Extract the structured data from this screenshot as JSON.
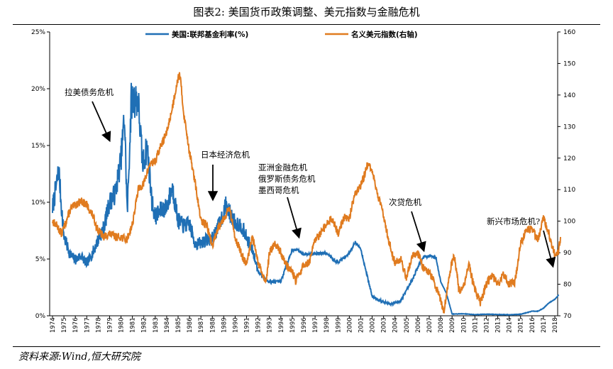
{
  "figure": {
    "title": "图表2:    美国货币政策调整、美元指数与金融危机",
    "source": "资料来源:Wind,恒大研究院"
  },
  "chart_data": {
    "type": "line",
    "x_years": [
      "1974",
      "1975",
      "1976",
      "1977",
      "1978",
      "1979",
      "1980",
      "1981",
      "1982",
      "1983",
      "1984",
      "1985",
      "1986",
      "1987",
      "1988",
      "1989",
      "1990",
      "1991",
      "1992",
      "1993",
      "1994",
      "1995",
      "1996",
      "1997",
      "1998",
      "1999",
      "2000",
      "2001",
      "2002",
      "2003",
      "2004",
      "2005",
      "2006",
      "2007",
      "2008",
      "2009",
      "2010",
      "2011",
      "2012",
      "2013",
      "2014",
      "2015",
      "2016",
      "2017",
      "2018"
    ],
    "y_left": {
      "min": 0,
      "max": 25,
      "ticks": [
        "0%",
        "5%",
        "10%",
        "15%",
        "20%",
        "25%"
      ]
    },
    "y_right": {
      "min": 70,
      "max": 160,
      "ticks": [
        "70",
        "80",
        "90",
        "100",
        "110",
        "120",
        "130",
        "140",
        "150",
        "160"
      ]
    },
    "legend_position": "top",
    "grid": false,
    "series": [
      {
        "name": "美国:联邦基金利率(%)",
        "axis": "left",
        "color": "#1f6fb5",
        "points": [
          [
            1974.0,
            9.5
          ],
          [
            1974.35,
            11.5
          ],
          [
            1974.55,
            12.9
          ],
          [
            1974.75,
            10.0
          ],
          [
            1975.0,
            7.0
          ],
          [
            1975.5,
            5.5
          ],
          [
            1976.0,
            4.9
          ],
          [
            1976.5,
            5.3
          ],
          [
            1977.0,
            4.6
          ],
          [
            1977.5,
            5.5
          ],
          [
            1978.0,
            6.7
          ],
          [
            1978.5,
            7.8
          ],
          [
            1979.0,
            10.0
          ],
          [
            1979.5,
            10.8
          ],
          [
            1980.0,
            13.8
          ],
          [
            1980.3,
            17.6
          ],
          [
            1980.55,
            9.0
          ],
          [
            1980.9,
            18.9
          ],
          [
            1981.2,
            19.1
          ],
          [
            1981.5,
            19.0
          ],
          [
            1981.9,
            13.3
          ],
          [
            1982.3,
            14.9
          ],
          [
            1982.7,
            10.1
          ],
          [
            1983.0,
            8.7
          ],
          [
            1983.5,
            9.3
          ],
          [
            1984.0,
            9.6
          ],
          [
            1984.5,
            11.3
          ],
          [
            1985.0,
            8.4
          ],
          [
            1985.5,
            7.9
          ],
          [
            1986.0,
            8.1
          ],
          [
            1986.5,
            6.3
          ],
          [
            1987.0,
            6.4
          ],
          [
            1987.5,
            6.7
          ],
          [
            1988.0,
            6.8
          ],
          [
            1988.5,
            7.8
          ],
          [
            1989.0,
            9.1
          ],
          [
            1989.2,
            9.8
          ],
          [
            1989.5,
            9.0
          ],
          [
            1990.0,
            8.2
          ],
          [
            1990.5,
            8.0
          ],
          [
            1991.0,
            6.9
          ],
          [
            1991.5,
            5.8
          ],
          [
            1992.0,
            4.0
          ],
          [
            1992.5,
            3.3
          ],
          [
            1993.0,
            3.0
          ],
          [
            1994.0,
            3.0
          ],
          [
            1994.5,
            4.5
          ],
          [
            1995.0,
            5.8
          ],
          [
            1995.5,
            5.8
          ],
          [
            1996.0,
            5.4
          ],
          [
            1997.0,
            5.5
          ],
          [
            1998.0,
            5.5
          ],
          [
            1998.8,
            4.8
          ],
          [
            1999.0,
            4.7
          ],
          [
            1999.5,
            5.1
          ],
          [
            2000.0,
            5.5
          ],
          [
            2000.5,
            6.5
          ],
          [
            2001.0,
            5.9
          ],
          [
            2001.5,
            3.8
          ],
          [
            2002.0,
            1.7
          ],
          [
            2003.0,
            1.2
          ],
          [
            2003.6,
            1.0
          ],
          [
            2004.5,
            1.3
          ],
          [
            2005.0,
            2.3
          ],
          [
            2005.5,
            3.1
          ],
          [
            2006.0,
            4.3
          ],
          [
            2006.5,
            5.2
          ],
          [
            2007.0,
            5.25
          ],
          [
            2007.6,
            5.1
          ],
          [
            2008.0,
            3.0
          ],
          [
            2008.5,
            2.0
          ],
          [
            2009.0,
            0.15
          ],
          [
            2010.0,
            0.18
          ],
          [
            2011.0,
            0.1
          ],
          [
            2012.0,
            0.14
          ],
          [
            2013.0,
            0.11
          ],
          [
            2014.0,
            0.09
          ],
          [
            2015.0,
            0.13
          ],
          [
            2016.0,
            0.4
          ],
          [
            2016.5,
            0.4
          ],
          [
            2017.0,
            0.66
          ],
          [
            2017.5,
            1.15
          ],
          [
            2018.0,
            1.45
          ],
          [
            2018.35,
            1.85
          ]
        ]
      },
      {
        "name": "名义美元指数(右轴)",
        "axis": "right",
        "color": "#e07b1f",
        "points": [
          [
            1974.0,
            100.0
          ],
          [
            1974.4,
            98.5
          ],
          [
            1974.8,
            96.0
          ],
          [
            1975.2,
            100.0
          ],
          [
            1975.6,
            104.0
          ],
          [
            1976.0,
            105.0
          ],
          [
            1976.5,
            106.5
          ],
          [
            1977.0,
            105.0
          ],
          [
            1977.5,
            102.0
          ],
          [
            1978.0,
            97.0
          ],
          [
            1978.5,
            95.0
          ],
          [
            1979.0,
            96.0
          ],
          [
            1979.5,
            95.0
          ],
          [
            1980.0,
            95.0
          ],
          [
            1980.5,
            94.0
          ],
          [
            1981.0,
            99.0
          ],
          [
            1981.5,
            110.0
          ],
          [
            1982.0,
            112.0
          ],
          [
            1982.5,
            118.0
          ],
          [
            1983.0,
            119.0
          ],
          [
            1983.5,
            124.0
          ],
          [
            1984.0,
            128.0
          ],
          [
            1984.5,
            136.0
          ],
          [
            1984.9,
            144.0
          ],
          [
            1985.15,
            147.0
          ],
          [
            1985.5,
            134.0
          ],
          [
            1986.0,
            122.0
          ],
          [
            1986.5,
            112.0
          ],
          [
            1987.0,
            100.0
          ],
          [
            1987.5,
            99.0
          ],
          [
            1988.0,
            92.0
          ],
          [
            1988.5,
            98.0
          ],
          [
            1989.0,
            101.0
          ],
          [
            1989.5,
            104.0
          ],
          [
            1990.0,
            95.0
          ],
          [
            1990.5,
            90.0
          ],
          [
            1991.0,
            86.0
          ],
          [
            1991.5,
            95.0
          ],
          [
            1992.0,
            87.0
          ],
          [
            1992.7,
            80.0
          ],
          [
            1993.0,
            90.0
          ],
          [
            1993.5,
            93.0
          ],
          [
            1994.0,
            90.0
          ],
          [
            1994.5,
            86.0
          ],
          [
            1995.0,
            84.0
          ],
          [
            1995.3,
            81.0
          ],
          [
            1996.0,
            86.0
          ],
          [
            1996.5,
            87.0
          ],
          [
            1997.0,
            94.0
          ],
          [
            1997.5,
            96.0
          ],
          [
            1998.0,
            99.0
          ],
          [
            1998.5,
            101.0
          ],
          [
            1999.0,
            96.0
          ],
          [
            1999.5,
            101.0
          ],
          [
            2000.0,
            101.0
          ],
          [
            2000.5,
            109.0
          ],
          [
            2001.0,
            111.0
          ],
          [
            2001.6,
            118.0
          ],
          [
            2002.0,
            116.0
          ],
          [
            2002.5,
            108.0
          ],
          [
            2003.0,
            102.0
          ],
          [
            2003.5,
            93.0
          ],
          [
            2004.0,
            87.0
          ],
          [
            2004.5,
            88.0
          ],
          [
            2005.0,
            82.0
          ],
          [
            2005.5,
            89.0
          ],
          [
            2006.0,
            90.0
          ],
          [
            2006.5,
            85.0
          ],
          [
            2007.0,
            84.0
          ],
          [
            2007.5,
            80.0
          ],
          [
            2008.0,
            75.0
          ],
          [
            2008.3,
            71.5
          ],
          [
            2008.9,
            86.0
          ],
          [
            2009.2,
            89.0
          ],
          [
            2009.6,
            78.0
          ],
          [
            2010.0,
            79.0
          ],
          [
            2010.5,
            86.0
          ],
          [
            2011.0,
            78.0
          ],
          [
            2011.5,
            74.0
          ],
          [
            2012.0,
            80.0
          ],
          [
            2012.5,
            83.0
          ],
          [
            2013.0,
            80.0
          ],
          [
            2013.5,
            83.0
          ],
          [
            2014.0,
            80.0
          ],
          [
            2014.5,
            80.5
          ],
          [
            2015.0,
            93.0
          ],
          [
            2015.5,
            97.0
          ],
          [
            2016.0,
            98.0
          ],
          [
            2016.5,
            94.0
          ],
          [
            2017.0,
            101.0
          ],
          [
            2017.5,
            96.0
          ],
          [
            2018.0,
            89.0
          ],
          [
            2018.3,
            90.0
          ],
          [
            2018.5,
            95.0
          ]
        ]
      }
    ],
    "annotations": [
      {
        "label": "拉美债务危机"
      },
      {
        "label": "日本经济危机"
      },
      {
        "label": "亚洲金融危机"
      },
      {
        "label": "俄罗斯债务危机"
      },
      {
        "label": "墨西哥危机"
      },
      {
        "label": "次贷危机"
      },
      {
        "label": "新兴市场危机?"
      }
    ]
  }
}
